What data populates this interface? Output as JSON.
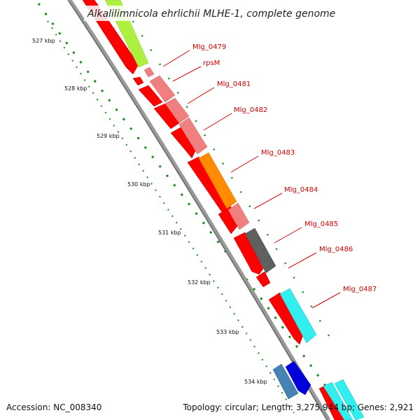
{
  "title": "Alkalilimnicola ehrlichii MLHE-1, complete genome",
  "ticks": [
    "527 kbp",
    "528 kbp",
    "529 kbp",
    "530 kbp",
    "531 kbp",
    "532 kbp",
    "533 kbp",
    "534 kbp"
  ],
  "gene_labels": [
    "Mlg_0479",
    "rpsM",
    "Mlg_0481",
    "Mlg_0482",
    "Mlg_0483",
    "Mlg_0484",
    "Mlg_0485",
    "Mlg_0486",
    "Mlg_0487"
  ],
  "footer": {
    "accession": "Accession: NC_008340",
    "summary": "Topology: circular; Length: 3,275,944 bp; Genes: 2,921"
  },
  "colors": {
    "backbone": "#888888",
    "tick_dots": "#1a8a1a",
    "cds_red": "#ff0000",
    "pink": "#f08080",
    "lime": "#aef040",
    "orange": "#ff8c00",
    "dark_gray": "#606060",
    "cyan": "#33eeee",
    "steel_blue": "#4682b4",
    "blue": "#0000dd",
    "label_red": "#d40000"
  }
}
